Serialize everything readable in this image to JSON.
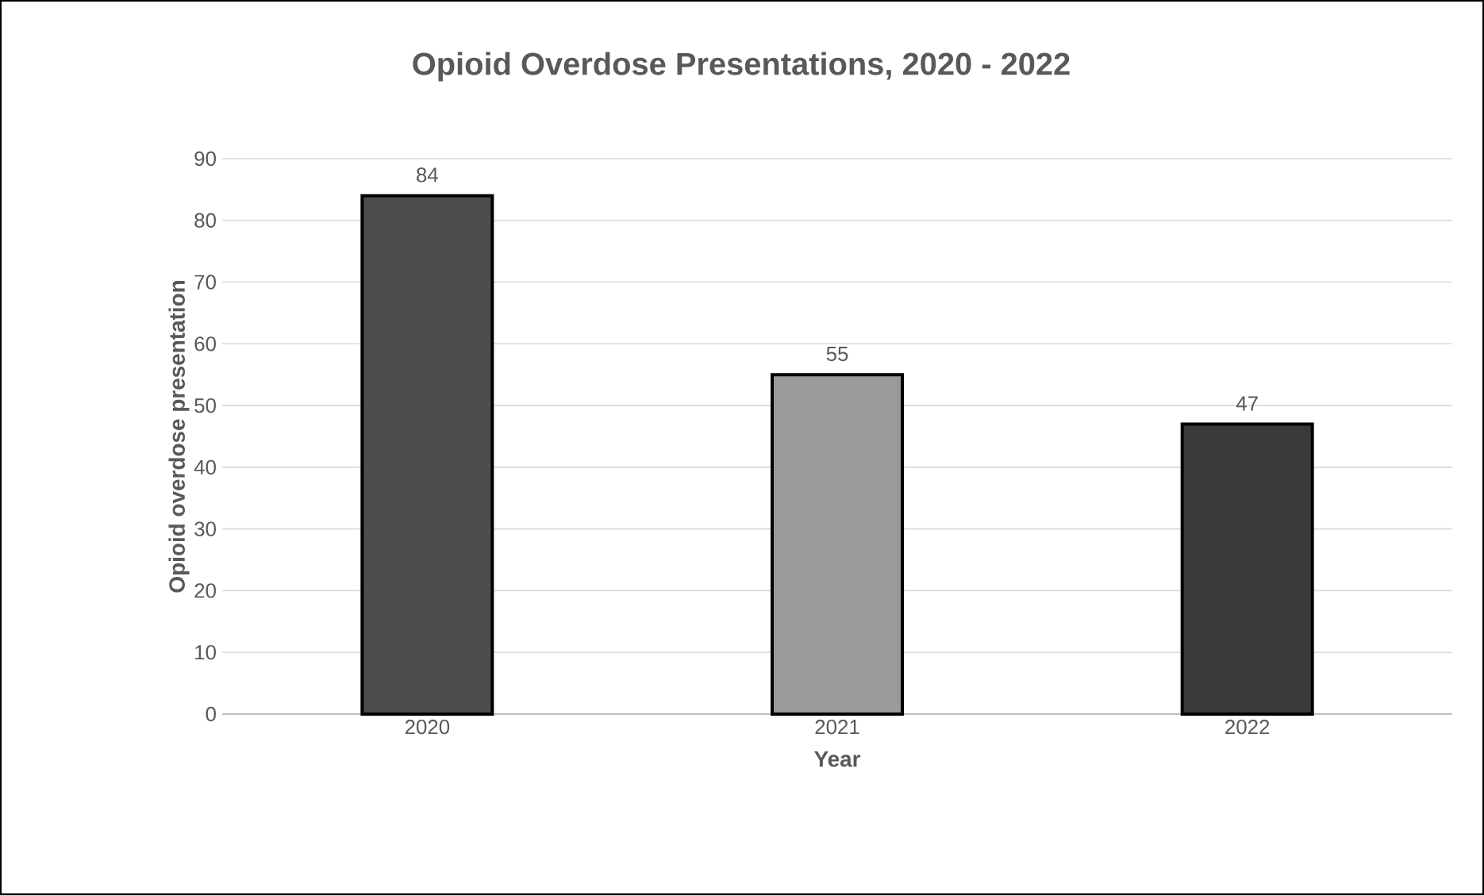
{
  "chart_data": {
    "type": "bar",
    "title": "Opioid Overdose Presentations, 2020 - 2022",
    "xlabel": "Year",
    "ylabel": "Opioid overdose presentation",
    "categories": [
      "2020",
      "2021",
      "2022"
    ],
    "values": [
      84,
      55,
      47
    ],
    "colors": [
      "#4d4d4d",
      "#9a9a9a",
      "#3a3a3a"
    ],
    "ylim": [
      0,
      90
    ],
    "yticks": [
      0,
      10,
      20,
      30,
      40,
      50,
      60,
      70,
      80,
      90
    ],
    "grid": "y",
    "data_labels": true
  }
}
